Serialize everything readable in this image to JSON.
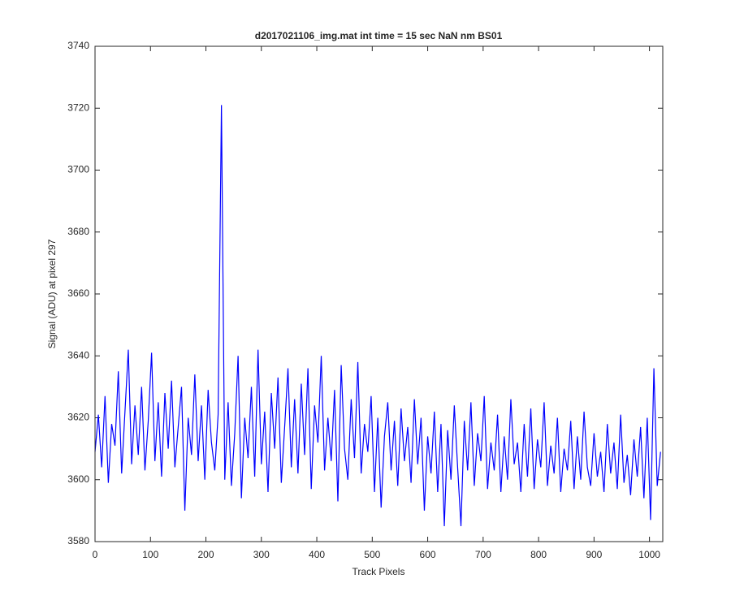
{
  "chart_data": {
    "type": "line",
    "title": "d2017021106_img.mat int time = 15 sec  NaN nm BS01",
    "xlabel": "Track Pixels",
    "ylabel": "Signal (ADU) at pixel 297",
    "xlim": [
      0,
      1024
    ],
    "ylim": [
      3580,
      3740
    ],
    "xticks": [
      0,
      100,
      200,
      300,
      400,
      500,
      600,
      700,
      800,
      900,
      1000
    ],
    "yticks": [
      3580,
      3600,
      3620,
      3640,
      3660,
      3680,
      3700,
      3720,
      3740
    ],
    "grid": false,
    "color": "#0000ff",
    "x": [
      0,
      6,
      12,
      18,
      24,
      30,
      36,
      42,
      48,
      54,
      60,
      66,
      72,
      78,
      84,
      90,
      96,
      102,
      108,
      114,
      120,
      126,
      132,
      138,
      144,
      150,
      156,
      162,
      168,
      174,
      180,
      186,
      192,
      198,
      204,
      210,
      216,
      222,
      228,
      234,
      240,
      246,
      252,
      258,
      264,
      270,
      276,
      282,
      288,
      294,
      300,
      306,
      312,
      318,
      324,
      330,
      336,
      342,
      348,
      354,
      360,
      366,
      372,
      378,
      384,
      390,
      396,
      402,
      408,
      414,
      420,
      426,
      432,
      438,
      444,
      450,
      456,
      462,
      468,
      474,
      480,
      486,
      492,
      498,
      504,
      510,
      516,
      522,
      528,
      534,
      540,
      546,
      552,
      558,
      564,
      570,
      576,
      582,
      588,
      594,
      600,
      606,
      612,
      618,
      624,
      630,
      636,
      642,
      648,
      654,
      660,
      666,
      672,
      678,
      684,
      690,
      696,
      702,
      708,
      714,
      720,
      726,
      732,
      738,
      744,
      750,
      756,
      762,
      768,
      774,
      780,
      786,
      792,
      798,
      804,
      810,
      816,
      822,
      828,
      834,
      840,
      846,
      852,
      858,
      864,
      870,
      876,
      882,
      888,
      894,
      900,
      906,
      912,
      918,
      924,
      930,
      936,
      942,
      948,
      954,
      960,
      966,
      972,
      978,
      984,
      990,
      996,
      1002,
      1008,
      1014,
      1020
    ],
    "values": [
      3609,
      3621,
      3604,
      3627,
      3599,
      3618,
      3611,
      3635,
      3602,
      3622,
      3642,
      3605,
      3624,
      3608,
      3630,
      3603,
      3619,
      3641,
      3606,
      3625,
      3601,
      3628,
      3610,
      3632,
      3604,
      3617,
      3630,
      3590,
      3620,
      3608,
      3634,
      3606,
      3624,
      3600,
      3629,
      3612,
      3603,
      3621,
      3721,
      3600,
      3625,
      3598,
      3615,
      3640,
      3594,
      3620,
      3607,
      3630,
      3601,
      3642,
      3605,
      3622,
      3596,
      3628,
      3610,
      3633,
      3599,
      3617,
      3636,
      3604,
      3626,
      3602,
      3631,
      3608,
      3636,
      3597,
      3624,
      3612,
      3640,
      3603,
      3620,
      3606,
      3629,
      3593,
      3637,
      3610,
      3600,
      3626,
      3607,
      3638,
      3602,
      3618,
      3609,
      3627,
      3596,
      3620,
      3591,
      3614,
      3625,
      3603,
      3619,
      3598,
      3623,
      3606,
      3617,
      3599,
      3626,
      3605,
      3620,
      3590,
      3614,
      3602,
      3622,
      3596,
      3618,
      3585,
      3616,
      3600,
      3624,
      3604,
      3585,
      3619,
      3603,
      3625,
      3598,
      3615,
      3606,
      3627,
      3597,
      3612,
      3603,
      3621,
      3596,
      3614,
      3600,
      3626,
      3605,
      3612,
      3596,
      3618,
      3601,
      3623,
      3597,
      3613,
      3604,
      3625,
      3598,
      3611,
      3602,
      3620,
      3596,
      3610,
      3603,
      3619,
      3597,
      3614,
      3600,
      3622,
      3604,
      3598,
      3615,
      3601,
      3609,
      3596,
      3618,
      3602,
      3612,
      3597,
      3621,
      3599,
      3608,
      3595,
      3613,
      3601,
      3617,
      3594,
      3620,
      3587,
      3636,
      3598,
      3609
    ]
  }
}
